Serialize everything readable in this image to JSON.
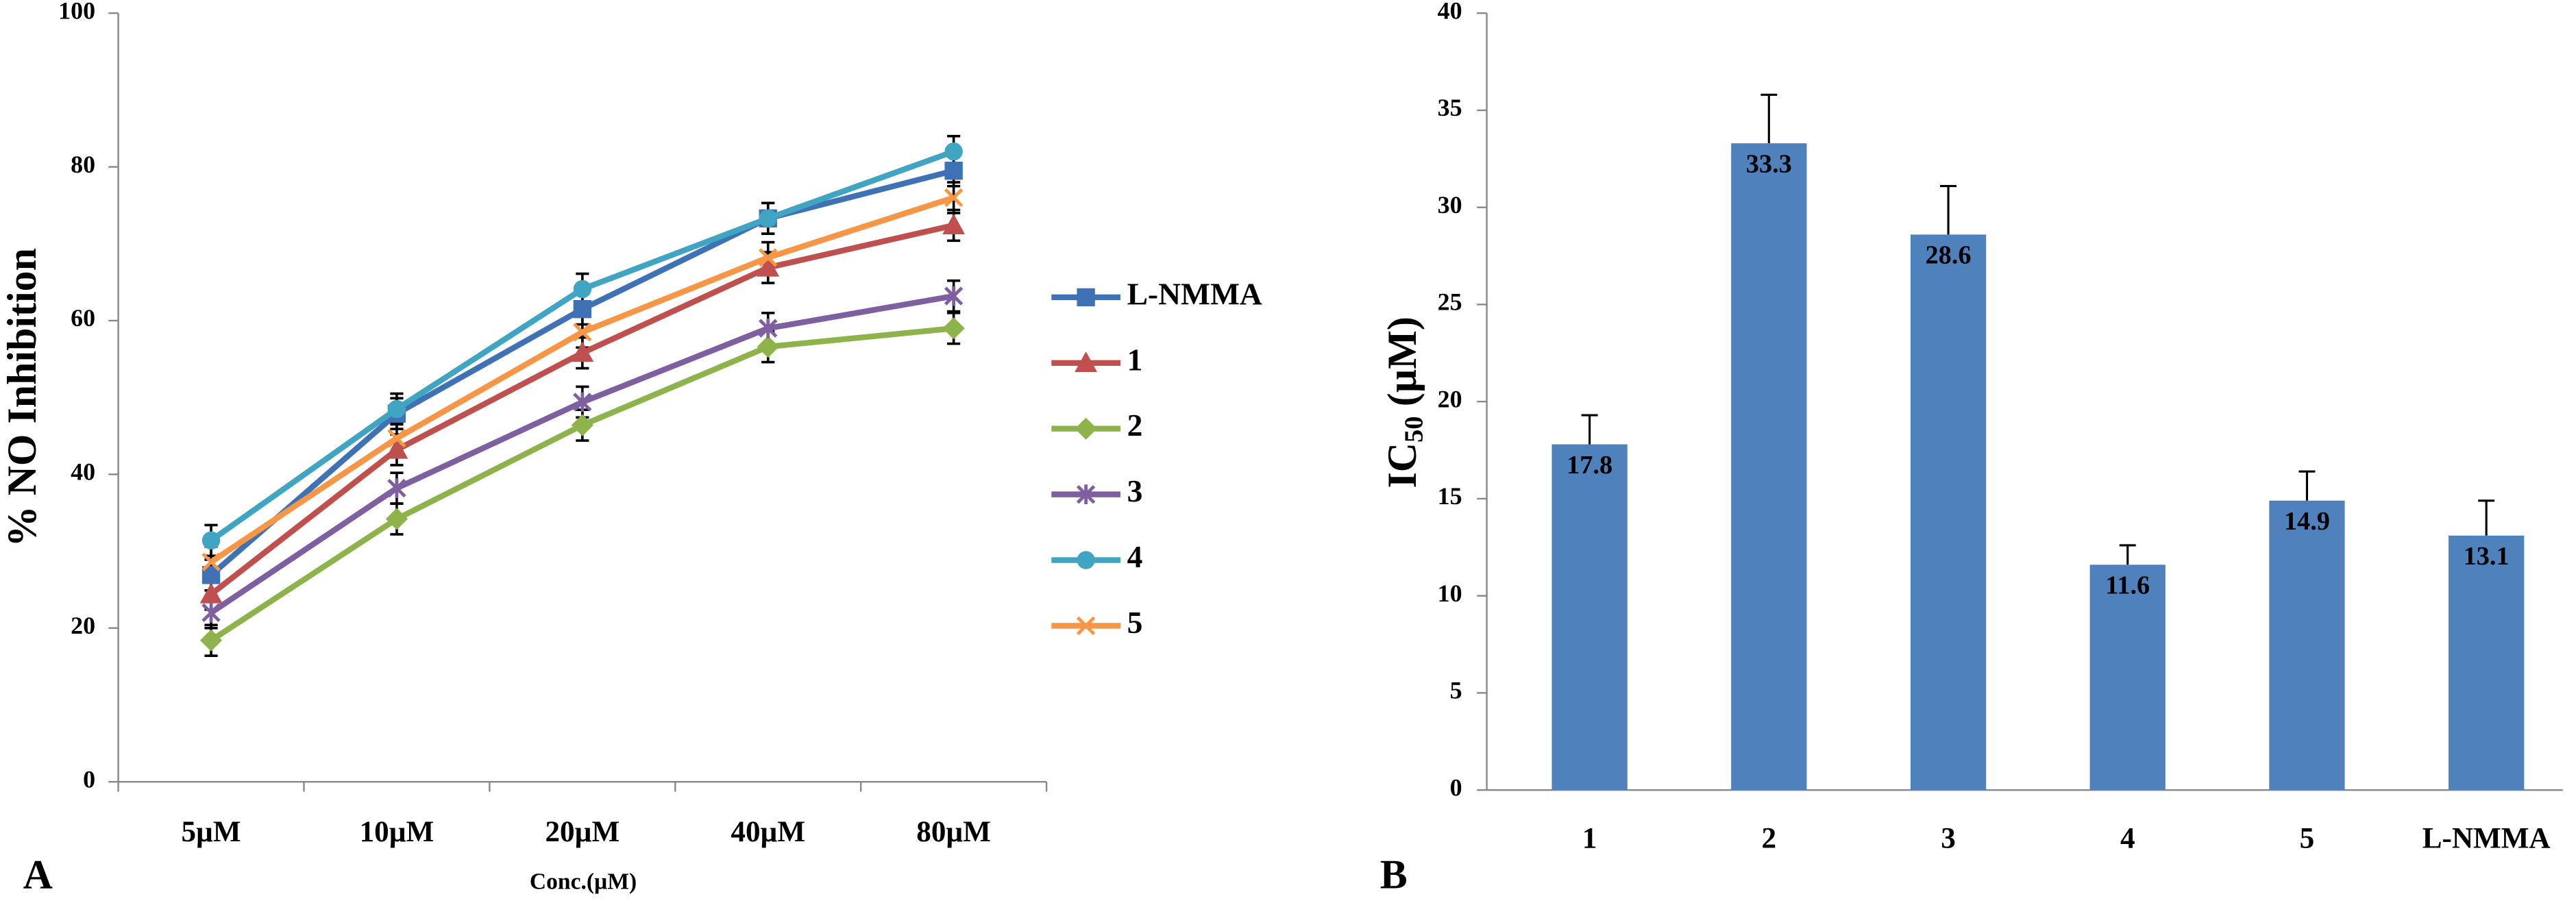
{
  "chart_data": [
    {
      "type": "line",
      "panel": "A",
      "y_label": "% NO Inhibition",
      "x_label": "Conc.(µM)",
      "categories": [
        "5µM",
        "10µM",
        "20µM",
        "40µM",
        "80µM"
      ],
      "ylim": [
        0,
        100
      ],
      "yticks": [
        0,
        20,
        40,
        60,
        80,
        100
      ],
      "grid": false,
      "legend": "right",
      "series": [
        {
          "name": "L-NMMA",
          "color": "#3f72b5",
          "marker": "square",
          "values": [
            26.9,
            47.9,
            61.5,
            73.3,
            79.5
          ],
          "errors": [
            2,
            2,
            2,
            2,
            2
          ]
        },
        {
          "name": "1",
          "color": "#c0504d",
          "marker": "triangle",
          "values": [
            24.4,
            43.2,
            55.8,
            66.9,
            72.4
          ],
          "errors": [
            2,
            2,
            2,
            2,
            2
          ]
        },
        {
          "name": "2",
          "color": "#8db34a",
          "marker": "diamond",
          "values": [
            18.4,
            34.2,
            46.4,
            56.6,
            59
          ],
          "errors": [
            2,
            2,
            2,
            2,
            2
          ]
        },
        {
          "name": "3",
          "color": "#7e60a0",
          "marker": "star",
          "values": [
            22,
            38.2,
            49.4,
            59,
            63.2
          ],
          "errors": [
            2,
            2,
            2,
            2,
            2
          ]
        },
        {
          "name": "4",
          "color": "#3fa5c2",
          "marker": "circle",
          "values": [
            31.4,
            48.5,
            64.1,
            73.3,
            82
          ],
          "errors": [
            2,
            2,
            2,
            2,
            2
          ]
        },
        {
          "name": "5",
          "color": "#f79646",
          "marker": "x",
          "values": [
            28.6,
            44.7,
            58.5,
            68.2,
            76
          ],
          "errors": [
            2,
            2,
            2,
            2,
            2
          ]
        }
      ]
    },
    {
      "type": "bar",
      "panel": "B",
      "y_label": {
        "text": "IC",
        "subscript": "50",
        "suffix": "(µM)"
      },
      "categories": [
        "1",
        "2",
        "3",
        "4",
        "5",
        "L-NMMA"
      ],
      "values": [
        17.8,
        33.3,
        28.6,
        11.6,
        14.9,
        13.1
      ],
      "errors": [
        1.5,
        2.5,
        2.5,
        1,
        1.5,
        1.8
      ],
      "color": "#4f81bd",
      "ylim": [
        0,
        40
      ],
      "yticks": [
        0,
        5,
        10,
        15,
        20,
        25,
        30,
        35,
        40
      ],
      "grid": false
    }
  ]
}
